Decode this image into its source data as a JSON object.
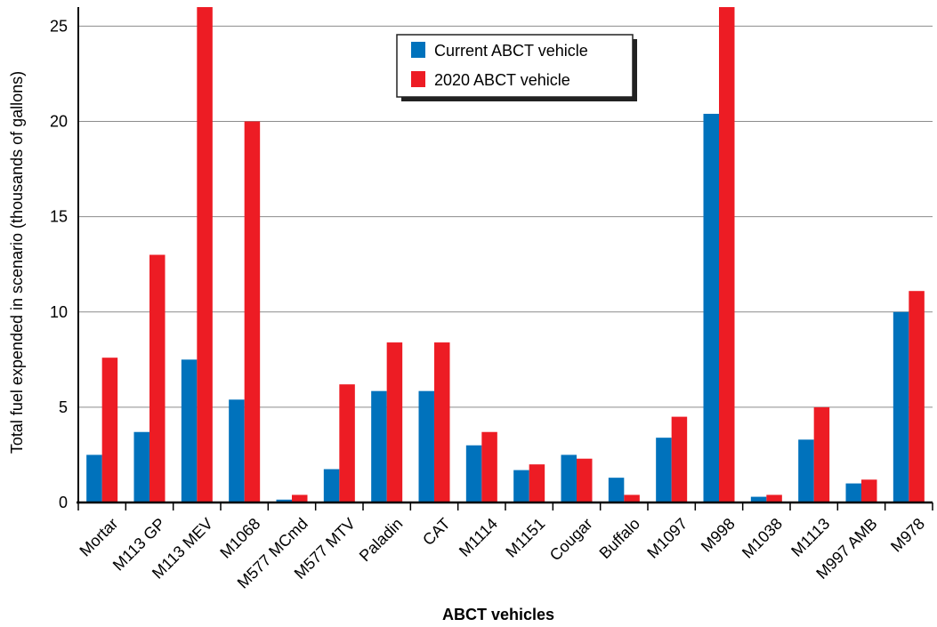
{
  "chart_data": {
    "type": "bar",
    "xlabel": "ABCT vehicles",
    "ylabel": "Total fuel expended in scenario (thousands of gallons)",
    "ylim": [
      0,
      26
    ],
    "yticks": [
      0,
      5,
      10,
      15,
      20,
      25
    ],
    "grid": true,
    "legend_position": "top-center",
    "categories": [
      "Mortar",
      "M113 GP",
      "M113 MEV",
      "M1068",
      "M577 MCmd",
      "M577 MTV",
      "Paladin",
      "CAT",
      "M1114",
      "M1151",
      "Cougar",
      "Buffalo",
      "M1097",
      "M998",
      "M1038",
      "M1113",
      "M997 AMB",
      "M978"
    ],
    "series": [
      {
        "name": "Current ABCT vehicle",
        "color": "#0072bc",
        "values": [
          2.5,
          3.7,
          7.5,
          5.4,
          0.15,
          1.75,
          5.85,
          5.85,
          3.0,
          1.7,
          2.5,
          1.3,
          3.4,
          20.4,
          0.3,
          3.3,
          1.0,
          10.0
        ]
      },
      {
        "name": "2020 ABCT vehicle",
        "color": "#ed1c24",
        "values": [
          7.6,
          13.0,
          26.0,
          20.0,
          0.4,
          6.2,
          8.4,
          8.4,
          3.7,
          2.0,
          2.3,
          0.4,
          4.5,
          26.0,
          0.4,
          5.0,
          1.2,
          11.1
        ]
      }
    ]
  }
}
